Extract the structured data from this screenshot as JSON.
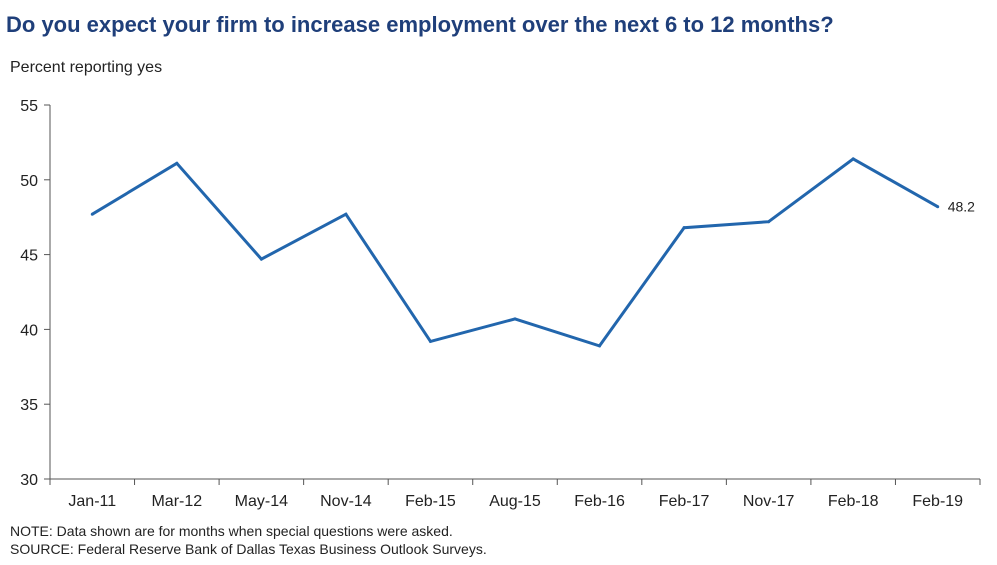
{
  "title": "Do you expect your firm to increase employment over the next 6 to 12 months?",
  "notes": {
    "note": "NOTE: Data shown are for months when special questions were asked.",
    "source": "SOURCE: Federal Reserve Bank of Dallas Texas Business Outlook Surveys."
  },
  "chart_data": {
    "type": "line",
    "title": "Do you expect your firm to increase employment over the next 6 to 12 months?",
    "ylabel": "Percent reporting yes",
    "xlabel": "",
    "categories": [
      "Jan-11",
      "Mar-12",
      "May-14",
      "Nov-14",
      "Feb-15",
      "Aug-15",
      "Feb-16",
      "Feb-17",
      "Nov-17",
      "Feb-18",
      "Feb-19"
    ],
    "series": [
      {
        "values": [
          47.7,
          51.1,
          44.7,
          47.7,
          39.2,
          40.7,
          38.9,
          46.8,
          47.2,
          51.4,
          48.2
        ],
        "color": "#2266ad"
      }
    ],
    "ylim": [
      30,
      55
    ],
    "yticks": [
      30,
      35,
      40,
      45,
      50,
      55
    ],
    "grid": false,
    "legend": "none",
    "end_label": "48.2"
  }
}
